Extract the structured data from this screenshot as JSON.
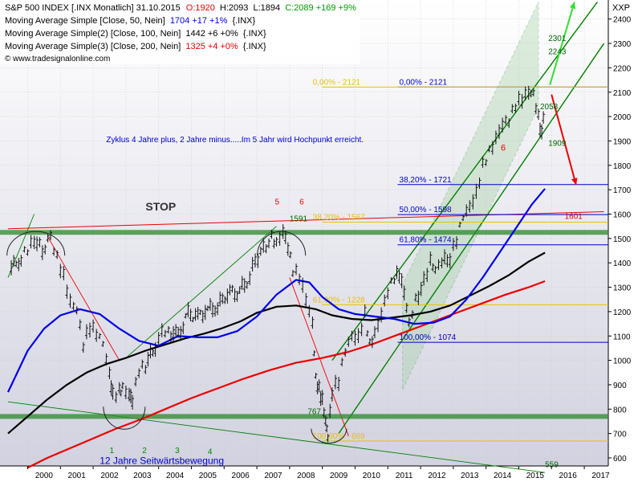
{
  "chart_data": {
    "type": "line",
    "title": "S&P 500 INDEX [.INX  Monatlich] 31.10.2015",
    "ohlc_summary": {
      "open_label": "O:1920",
      "high_label": "H:2093",
      "low_label": "L:1894",
      "close_label": "C:2089 +169 +9%"
    },
    "legend": [
      {
        "text": "Moving Average Simple [Close, 50, Nein]",
        "value": "1704 +17 +1%",
        "tail": "{.INX}",
        "color": "#0000ee"
      },
      {
        "text": "Moving Average Simple(2) [Close, 100, Nein]",
        "value": "1442 +6 +0%",
        "tail": "{.INX}",
        "color": "#000000"
      },
      {
        "text": "Moving Average Simple(3) [Close, 200, Nein]",
        "value": "1325 +4 +0%",
        "tail": "{.INX}",
        "color": "#ee0000"
      }
    ],
    "watermark": "© www.tradesignalonline.com",
    "y_axis_title": "XXP",
    "ylim": [
      560,
      2480
    ],
    "y_ticks": [
      600,
      700,
      800,
      900,
      1000,
      1100,
      1200,
      1300,
      1400,
      1500,
      1600,
      1700,
      1800,
      1900,
      2000,
      2100,
      2200,
      2300,
      2400
    ],
    "x_years": [
      "2000",
      "2001",
      "2002",
      "2003",
      "2004",
      "2005",
      "2006",
      "2007",
      "2008",
      "2009",
      "2010",
      "2011",
      "2012",
      "2013",
      "2014",
      "2015",
      "2016",
      "2017"
    ],
    "xlim": [
      1999.4,
      2017.6
    ],
    "price_points": [
      [
        1999.5,
        1380
      ],
      [
        1999.8,
        1420
      ],
      [
        2000.0,
        1460
      ],
      [
        2000.2,
        1500
      ],
      [
        2000.45,
        1450
      ],
      [
        2000.7,
        1510
      ],
      [
        2000.9,
        1420
      ],
      [
        2001.1,
        1340
      ],
      [
        2001.3,
        1230
      ],
      [
        2001.5,
        1200
      ],
      [
        2001.7,
        1060
      ],
      [
        2001.9,
        1140
      ],
      [
        2002.1,
        1120
      ],
      [
        2002.3,
        1080
      ],
      [
        2002.5,
        950
      ],
      [
        2002.6,
        860
      ],
      [
        2002.8,
        870
      ],
      [
        2002.9,
        880
      ],
      [
        2003.1,
        850
      ],
      [
        2003.2,
        830
      ],
      [
        2003.4,
        960
      ],
      [
        2003.6,
        980
      ],
      [
        2003.9,
        1060
      ],
      [
        2004.1,
        1130
      ],
      [
        2004.3,
        1120
      ],
      [
        2004.6,
        1100
      ],
      [
        2004.9,
        1190
      ],
      [
        2005.2,
        1180
      ],
      [
        2005.5,
        1210
      ],
      [
        2005.8,
        1220
      ],
      [
        2006.1,
        1280
      ],
      [
        2006.4,
        1280
      ],
      [
        2006.7,
        1320
      ],
      [
        2006.95,
        1410
      ],
      [
        2007.2,
        1460
      ],
      [
        2007.45,
        1500
      ],
      [
        2007.6,
        1470
      ],
      [
        2007.8,
        1520
      ],
      [
        2007.95,
        1460
      ],
      [
        2008.1,
        1370
      ],
      [
        2008.3,
        1350
      ],
      [
        2008.5,
        1260
      ],
      [
        2008.7,
        1160
      ],
      [
        2008.8,
        930
      ],
      [
        2008.9,
        880
      ],
      [
        2009.0,
        830
      ],
      [
        2009.1,
        740
      ],
      [
        2009.17,
        680
      ],
      [
        2009.3,
        870
      ],
      [
        2009.5,
        920
      ],
      [
        2009.7,
        1050
      ],
      [
        2009.9,
        1110
      ],
      [
        2010.1,
        1100
      ],
      [
        2010.3,
        1190
      ],
      [
        2010.45,
        1060
      ],
      [
        2010.6,
        1100
      ],
      [
        2010.8,
        1180
      ],
      [
        2011.0,
        1280
      ],
      [
        2011.2,
        1340
      ],
      [
        2011.35,
        1360
      ],
      [
        2011.5,
        1290
      ],
      [
        2011.65,
        1160
      ],
      [
        2011.85,
        1250
      ],
      [
        2012.1,
        1320
      ],
      [
        2012.3,
        1400
      ],
      [
        2012.45,
        1360
      ],
      [
        2012.65,
        1400
      ],
      [
        2012.9,
        1420
      ],
      [
        2013.1,
        1500
      ],
      [
        2013.3,
        1600
      ],
      [
        2013.5,
        1640
      ],
      [
        2013.7,
        1690
      ],
      [
        2013.9,
        1800
      ],
      [
        2014.1,
        1850
      ],
      [
        2014.3,
        1900
      ],
      [
        2014.5,
        1960
      ],
      [
        2014.7,
        1980
      ],
      [
        2014.9,
        2050
      ],
      [
        2015.1,
        2080
      ],
      [
        2015.3,
        2110
      ],
      [
        2015.45,
        2100
      ],
      [
        2015.6,
        2000
      ],
      [
        2015.7,
        1920
      ],
      [
        2015.8,
        2089
      ]
    ],
    "sma50": [
      [
        1999.4,
        870
      ],
      [
        2000.0,
        1040
      ],
      [
        2000.5,
        1130
      ],
      [
        2001.0,
        1185
      ],
      [
        2001.6,
        1210
      ],
      [
        2002.2,
        1190
      ],
      [
        2002.8,
        1130
      ],
      [
        2003.4,
        1080
      ],
      [
        2004.0,
        1060
      ],
      [
        2004.6,
        1100
      ],
      [
        2005.2,
        1095
      ],
      [
        2005.8,
        1095
      ],
      [
        2006.4,
        1120
      ],
      [
        2007.0,
        1180
      ],
      [
        2007.6,
        1270
      ],
      [
        2008.2,
        1330
      ],
      [
        2008.6,
        1320
      ],
      [
        2009.0,
        1260
      ],
      [
        2009.5,
        1210
      ],
      [
        2010.0,
        1190
      ],
      [
        2010.6,
        1180
      ],
      [
        2011.2,
        1170
      ],
      [
        2011.8,
        1150
      ],
      [
        2012.4,
        1155
      ],
      [
        2012.9,
        1180
      ],
      [
        2013.4,
        1250
      ],
      [
        2013.9,
        1340
      ],
      [
        2014.4,
        1440
      ],
      [
        2014.9,
        1540
      ],
      [
        2015.4,
        1640
      ],
      [
        2015.8,
        1704
      ]
    ],
    "sma100": [
      [
        1999.4,
        700
      ],
      [
        2000.0,
        770
      ],
      [
        2000.6,
        840
      ],
      [
        2001.2,
        900
      ],
      [
        2001.8,
        950
      ],
      [
        2002.4,
        985
      ],
      [
        2003.0,
        1010
      ],
      [
        2003.6,
        1040
      ],
      [
        2004.2,
        1065
      ],
      [
        2004.8,
        1090
      ],
      [
        2005.4,
        1110
      ],
      [
        2005.9,
        1130
      ],
      [
        2006.5,
        1160
      ],
      [
        2007.0,
        1195
      ],
      [
        2007.6,
        1220
      ],
      [
        2008.2,
        1225
      ],
      [
        2008.8,
        1210
      ],
      [
        2009.3,
        1185
      ],
      [
        2009.9,
        1170
      ],
      [
        2010.5,
        1165
      ],
      [
        2011.1,
        1175
      ],
      [
        2011.7,
        1185
      ],
      [
        2012.3,
        1200
      ],
      [
        2012.9,
        1225
      ],
      [
        2013.5,
        1265
      ],
      [
        2014.1,
        1305
      ],
      [
        2014.7,
        1350
      ],
      [
        2015.3,
        1405
      ],
      [
        2015.8,
        1442
      ]
    ],
    "sma200": [
      [
        2000.0,
        560
      ],
      [
        2000.6,
        600
      ],
      [
        2001.3,
        640
      ],
      [
        2002.0,
        680
      ],
      [
        2002.7,
        720
      ],
      [
        2003.5,
        760
      ],
      [
        2004.2,
        800
      ],
      [
        2005.0,
        845
      ],
      [
        2005.8,
        885
      ],
      [
        2006.6,
        925
      ],
      [
        2007.4,
        960
      ],
      [
        2008.2,
        990
      ],
      [
        2009.0,
        1010
      ],
      [
        2009.8,
        1035
      ],
      [
        2010.6,
        1070
      ],
      [
        2011.4,
        1110
      ],
      [
        2012.2,
        1150
      ],
      [
        2013.0,
        1190
      ],
      [
        2013.8,
        1230
      ],
      [
        2014.6,
        1270
      ],
      [
        2015.3,
        1300
      ],
      [
        2015.8,
        1325
      ]
    ],
    "fib_levels": [
      {
        "label": "0,00% - 2121",
        "value": 2121
      },
      {
        "label": "38,20% - 1721",
        "value": 1721
      },
      {
        "label": "50,00% - 1598",
        "value": 1598
      },
      {
        "label": "61,80% - 1474",
        "value": 1474
      },
      {
        "label": "100,00% - 1074",
        "value": 1074
      }
    ],
    "old_fib_levels": [
      {
        "label": "0,00% - 2121",
        "value": 2121
      },
      {
        "label": "38,20% - 1567",
        "value": 1567
      },
      {
        "label": "61,80% - 1228",
        "value": 1228
      },
      {
        "label": "100,00% - 669",
        "value": 669
      }
    ],
    "annotations": {
      "cycle_note": "Zyklus 4 Jahre plus, 2 Jahre minus.....Im 5 Jahr wird Hochpunkt erreicht.",
      "stop": "STOP",
      "sideways": "12 Jahre Seitwärtsbewegung",
      "n1": "1",
      "n2": "2",
      "n3": "3",
      "n4": "4",
      "n5": "5",
      "n6a": "6",
      "n6b": "6",
      "v767": "767",
      "v1591": "1591",
      "v1601": "1601",
      "v559": "559",
      "v2301": "2301",
      "v2243": "2243",
      "v2058": "2058",
      "v1909": "1909"
    },
    "horizontal_support": [
      1525,
      770
    ],
    "colors": {
      "sma50": "#0000ee",
      "sma100": "#000000",
      "sma200": "#ee0000",
      "price": "#111111",
      "fib": "#0000cc",
      "fib_old": "#e6c200",
      "channel": "#008000",
      "support": "#2a8a2a",
      "arrow_up": "#33dd33",
      "arrow_down": "#ee0000",
      "bg_top": "#ffffff",
      "bg_bottom": "#d4d4e2"
    }
  }
}
